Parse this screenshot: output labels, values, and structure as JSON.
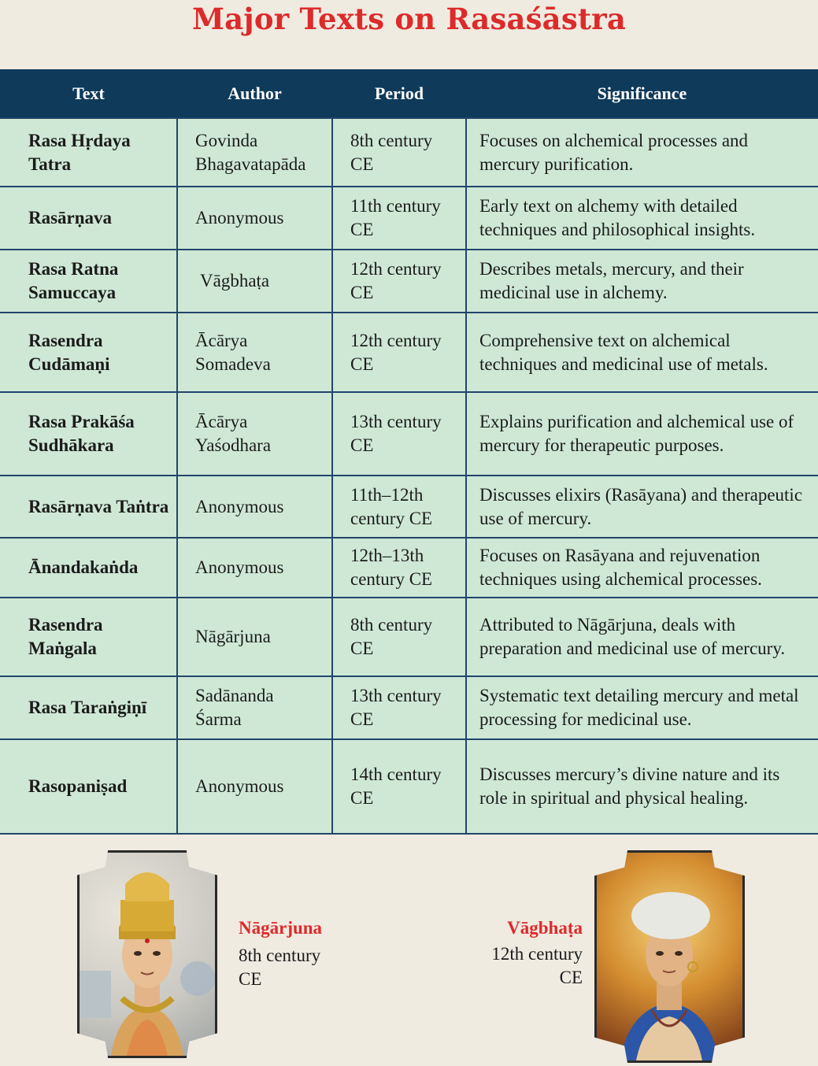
{
  "title": "Major Texts on Rasaśāstra",
  "table": {
    "headers": [
      "Text",
      "Author",
      "Period",
      "Significance"
    ],
    "rows": [
      {
        "text": "Rasa Hṛdaya Tatra",
        "author": "Govinda Bhagavatapāda",
        "period": "8th century CE",
        "significance": "Focuses on alchemical processes and mercury purification."
      },
      {
        "text": "Rasārṇava",
        "author": "Anonymous",
        "period": "11th century CE",
        "significance": "Early text on alchemy with detailed techniques and philosophical insights."
      },
      {
        "text": "Rasa Ratna Samuccaya",
        "author": "Vāgbhaṭa",
        "period": "12th century CE",
        "significance": "Describes metals, mercury, and their medicinal use in alchemy."
      },
      {
        "text": "Rasendra Cudāmaṇi",
        "author": "Ācārya Somadeva",
        "period": "12th century CE",
        "significance": "Comprehensive text on alchemical techniques and medicinal use of metals."
      },
      {
        "text": "Rasa Prakāśa Sudhākara",
        "author": "Ācārya Yaśodhara",
        "period": "13th century CE",
        "significance": "Explains purification and alchemical use of mercury for therapeutic purposes."
      },
      {
        "text": "Rasārṇava Taṅtra",
        "author": "Anonymous",
        "period": "11th–12th century CE",
        "significance": "Discusses elixirs (Rasāyana) and therapeutic use of mercury."
      },
      {
        "text": "Ānandakaṅda",
        "author": "Anonymous",
        "period": "12th–13th century CE",
        "significance": "Focuses on Rasāyana and rejuvenation techniques using alchemical processes."
      },
      {
        "text": "Rasendra Maṅgala",
        "author": "Nāgārjuna",
        "period": "8th century CE",
        "significance": "Attributed to Nāgārjuna, deals with preparation and medicinal use of mercury."
      },
      {
        "text": "Rasa Taraṅgiṇī",
        "author": "Sadānanda Śarma",
        "period": "13th century CE",
        "significance": "Systematic text detailing mercury and metal processing for medicinal use."
      },
      {
        "text": "Rasopaniṣad",
        "author": "Anonymous",
        "period": "14th century CE",
        "significance": "Discusses mercury’s divine nature and its role in spiritual and physical healing."
      }
    ]
  },
  "portraits": [
    {
      "name": "Nāgārjuna",
      "period": "8th century CE"
    },
    {
      "name": "Vāgbhaṭa",
      "period": "12th century CE"
    }
  ]
}
